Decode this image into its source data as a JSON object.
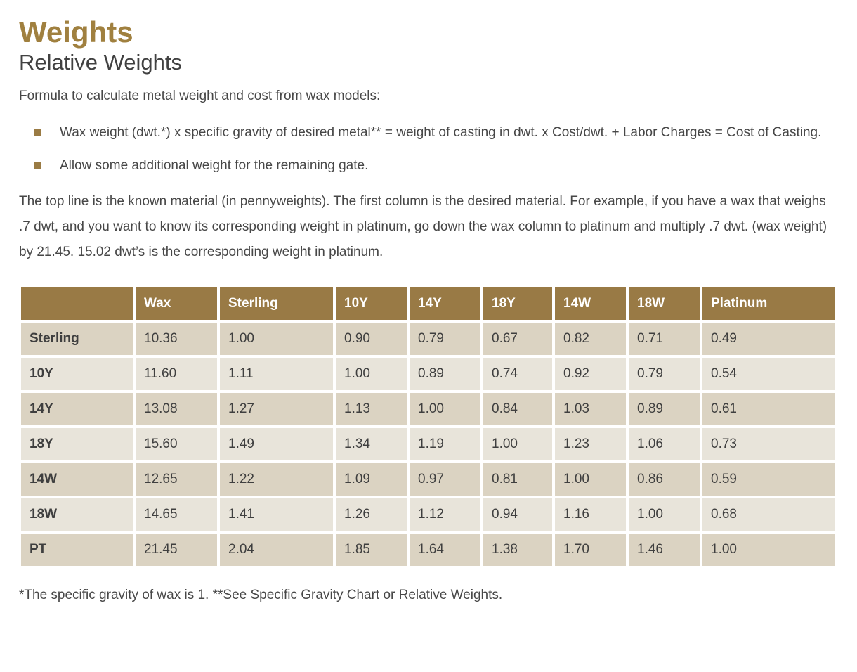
{
  "page": {
    "title": "Weights",
    "subtitle": "Relative Weights",
    "intro": "Formula to calculate metal weight and cost from wax models:",
    "bullets": [
      "Wax weight (dwt.*) x specific gravity of desired metal** = weight of casting in dwt. x Cost/dwt. + Labor Charges = Cost of Casting.",
      "Allow some additional weight for the remaining gate."
    ],
    "description": "The top line is the known material (in pennyweights). The first column is the desired material. For example, if you have a wax that weighs .7 dwt, and you want to know its corresponding weight in platinum, go down the wax column to platinum and multiply .7 dwt. (wax weight) by 21.45. 15.02 dwt’s is the corresponding weight in platinum.",
    "footnote": "*The specific gravity of wax is 1. **See Specific Gravity Chart or Relative Weights."
  },
  "table": {
    "columns": [
      "",
      "Wax",
      "Sterling",
      "10Y",
      "14Y",
      "18Y",
      "14W",
      "18W",
      "Platinum"
    ],
    "rows": [
      {
        "label": "Sterling",
        "values": [
          "10.36",
          "1.00",
          "0.90",
          "0.79",
          "0.67",
          "0.82",
          "0.71",
          "0.49"
        ]
      },
      {
        "label": "10Y",
        "values": [
          "11.60",
          "1.11",
          "1.00",
          "0.89",
          "0.74",
          "0.92",
          "0.79",
          "0.54"
        ]
      },
      {
        "label": "14Y",
        "values": [
          "13.08",
          "1.27",
          "1.13",
          "1.00",
          "0.84",
          "1.03",
          "0.89",
          "0.61"
        ]
      },
      {
        "label": "18Y",
        "values": [
          "15.60",
          "1.49",
          "1.34",
          "1.19",
          "1.00",
          "1.23",
          "1.06",
          "0.73"
        ]
      },
      {
        "label": "14W",
        "values": [
          "12.65",
          "1.22",
          "1.09",
          "0.97",
          "0.81",
          "1.00",
          "0.86",
          "0.59"
        ]
      },
      {
        "label": "18W",
        "values": [
          "14.65",
          "1.41",
          "1.26",
          "1.12",
          "0.94",
          "1.16",
          "1.00",
          "0.68"
        ]
      },
      {
        "label": "PT",
        "values": [
          "21.45",
          "2.04",
          "1.85",
          "1.64",
          "1.38",
          "1.70",
          "1.46",
          "1.00"
        ]
      }
    ]
  },
  "colors": {
    "accent_gold": "#a0803f",
    "table_header_bg": "#997a45",
    "row_dark_bg": "#dbd3c2",
    "row_light_bg": "#e8e4da",
    "body_text": "#474747"
  }
}
